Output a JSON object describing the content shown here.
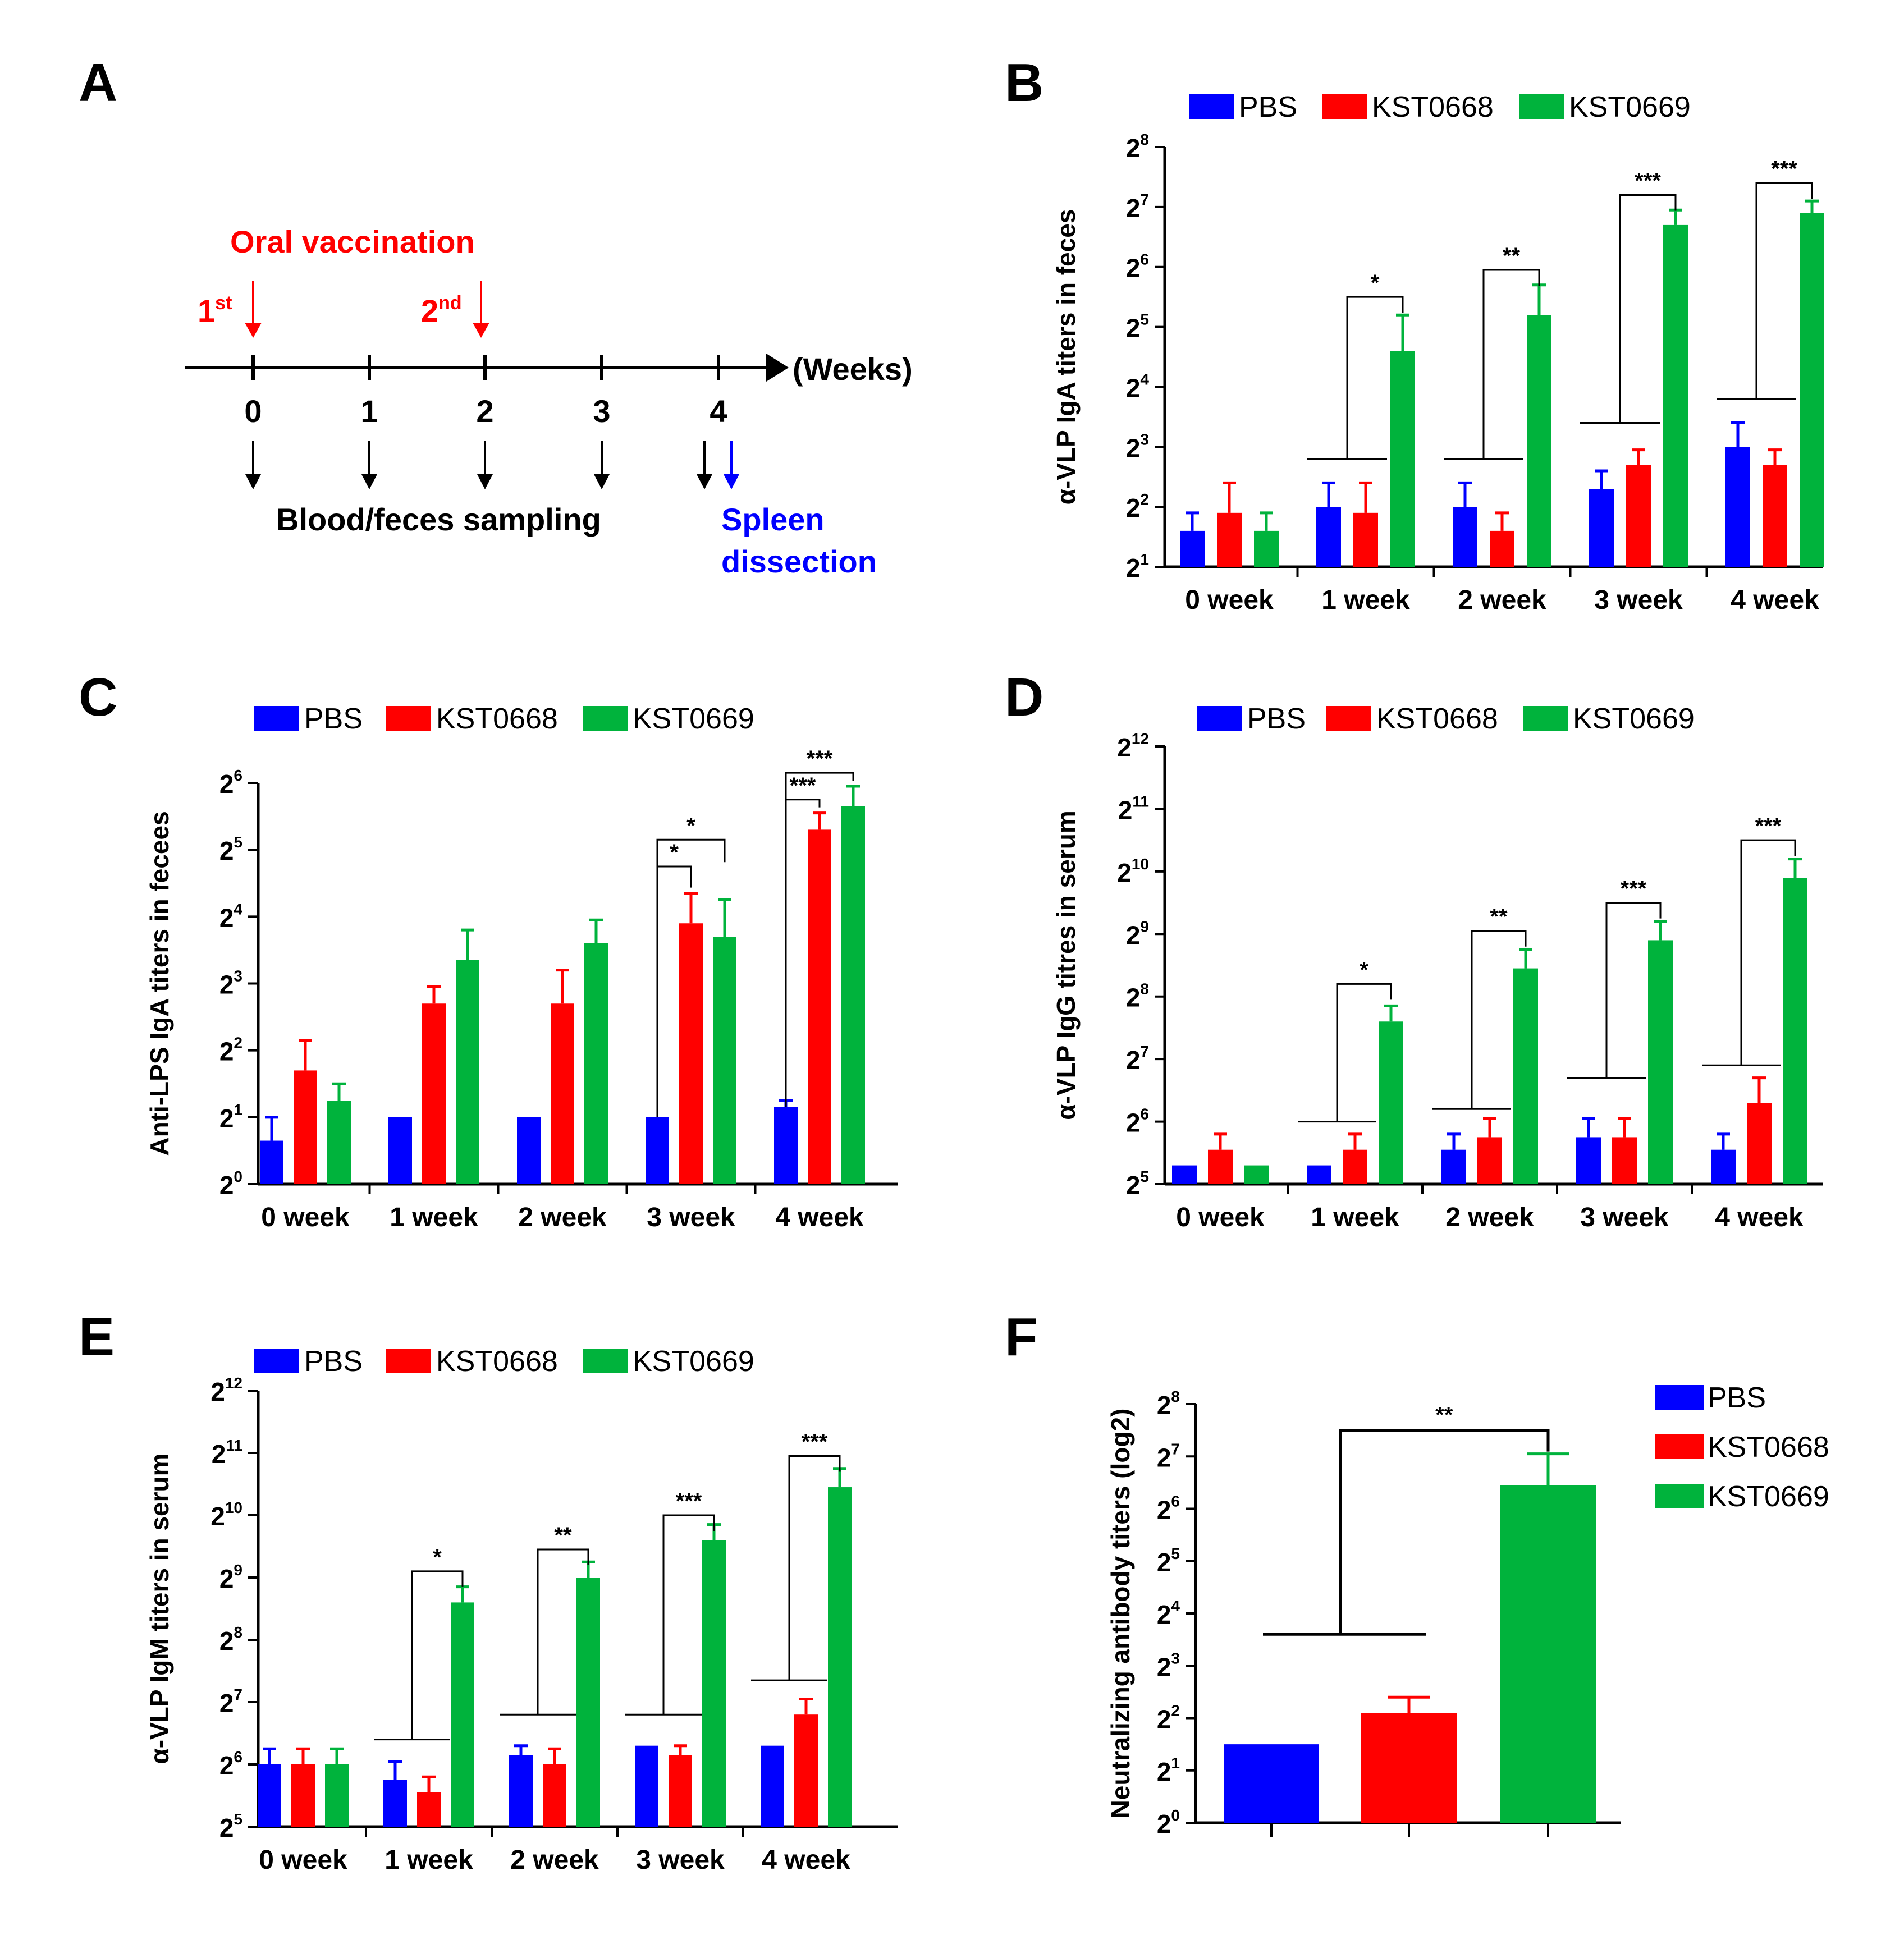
{
  "colors": {
    "PBS": "#0000ff",
    "KST0668": "#ff0000",
    "KST0669": "#00b33c",
    "red": "#ff0000",
    "blue": "#0000ff",
    "black": "#000000"
  },
  "timeline": {
    "panel_label": "A",
    "vaccination_label": "Oral vaccination",
    "first_main": "1",
    "first_sup": "st",
    "second_main": "2",
    "second_sup": "nd",
    "axis_label": "(Weeks)",
    "ticks": [
      "0",
      "1",
      "2",
      "3",
      "4"
    ],
    "sampling_label": "Blood/feces sampling",
    "spleen_label_1": "Spleen",
    "spleen_label_2": "dissection"
  },
  "chart_data": [
    {
      "id": "B",
      "panel_label": "B",
      "type": "bar",
      "ylabel": "α-VLP IgA  titers in feces",
      "categories": [
        "0 week",
        "1 week",
        "2 week",
        "3 week",
        "4 week"
      ],
      "legend": [
        "PBS",
        "KST0668",
        "KST0669"
      ],
      "y_base": 2,
      "ylim_exp": [
        1,
        8
      ],
      "y_ticks": [
        {
          "base": "2",
          "exp": "1"
        },
        {
          "base": "2",
          "exp": "2"
        },
        {
          "base": "2",
          "exp": "3"
        },
        {
          "base": "2",
          "exp": "4"
        },
        {
          "base": "2",
          "exp": "5"
        },
        {
          "base": "2",
          "exp": "6"
        },
        {
          "base": "2",
          "exp": "7"
        },
        {
          "base": "2",
          "exp": "8"
        }
      ],
      "series": [
        {
          "name": "PBS",
          "values_log2": [
            1.6,
            2.0,
            2.0,
            2.3,
            3.0
          ],
          "errors_log2": [
            0.3,
            0.4,
            0.4,
            0.3,
            0.4
          ]
        },
        {
          "name": "KST0668",
          "values_log2": [
            1.9,
            1.9,
            1.6,
            2.7,
            2.7
          ],
          "errors_log2": [
            0.5,
            0.5,
            0.3,
            0.25,
            0.25
          ]
        },
        {
          "name": "KST0669",
          "values_log2": [
            1.6,
            4.6,
            5.2,
            6.7,
            6.9
          ],
          "errors_log2": [
            0.3,
            0.6,
            0.5,
            0.25,
            0.2
          ]
        }
      ],
      "significance": [
        {
          "category": 1,
          "label": "*",
          "bracket_exp": 5.5,
          "left_exp": 2.8
        },
        {
          "category": 2,
          "label": "**",
          "bracket_exp": 5.95,
          "left_exp": 2.8
        },
        {
          "category": 3,
          "label": "***",
          "bracket_exp": 7.2,
          "left_exp": 3.4
        },
        {
          "category": 4,
          "label": "***",
          "bracket_exp": 7.4,
          "left_exp": 3.8
        }
      ]
    },
    {
      "id": "C",
      "panel_label": "C",
      "type": "bar",
      "ylabel": "Anti-LPS IgA titers in fecees",
      "categories": [
        "0 week",
        "1 week",
        "2 week",
        "3 week",
        "4 week"
      ],
      "legend": [
        "PBS",
        "KST0668",
        "KST0669"
      ],
      "y_base": 2,
      "ylim_exp": [
        0,
        6
      ],
      "y_ticks": [
        {
          "base": "2",
          "exp": "0"
        },
        {
          "base": "2",
          "exp": "1"
        },
        {
          "base": "2",
          "exp": "2"
        },
        {
          "base": "2",
          "exp": "3"
        },
        {
          "base": "2",
          "exp": "4"
        },
        {
          "base": "2",
          "exp": "5"
        },
        {
          "base": "2",
          "exp": "6"
        }
      ],
      "series": [
        {
          "name": "PBS",
          "values_log2": [
            0.65,
            1.0,
            1.0,
            1.0,
            1.15
          ],
          "errors_log2": [
            0.35,
            0,
            0,
            0,
            0.1
          ]
        },
        {
          "name": "KST0668",
          "values_log2": [
            1.7,
            2.7,
            2.7,
            3.9,
            5.3
          ],
          "errors_log2": [
            0.45,
            0.25,
            0.5,
            0.45,
            0.25
          ]
        },
        {
          "name": "KST0669",
          "values_log2": [
            1.25,
            3.35,
            3.6,
            3.7,
            5.65
          ],
          "errors_log2": [
            0.25,
            0.45,
            0.35,
            0.55,
            0.3
          ]
        }
      ],
      "significance": [
        {
          "category": 3,
          "label": "*",
          "from": 0,
          "to": 1,
          "bracket_exp": 4.75
        },
        {
          "category": 3,
          "label": "*",
          "from": 0,
          "to": 2,
          "bracket_exp": 5.15
        },
        {
          "category": 4,
          "label": "***",
          "from": 0,
          "to": 1,
          "bracket_exp": 5.75
        },
        {
          "category": 4,
          "label": "***",
          "from": 0,
          "to": 2,
          "bracket_exp": 6.15
        }
      ]
    },
    {
      "id": "D",
      "panel_label": "D",
      "type": "bar",
      "ylabel": "α-VLP IgG  titres in serum",
      "categories": [
        "0 week",
        "1 week",
        "2 week",
        "3 week",
        "4 week"
      ],
      "legend": [
        "PBS",
        "KST0668",
        "KST0669"
      ],
      "y_base": 2,
      "ylim_exp": [
        5,
        12
      ],
      "y_ticks": [
        {
          "base": "2",
          "exp": "5"
        },
        {
          "base": "2",
          "exp": "6"
        },
        {
          "base": "2",
          "exp": "7"
        },
        {
          "base": "2",
          "exp": "8"
        },
        {
          "base": "2",
          "exp": "9"
        },
        {
          "base": "2",
          "exp": "10"
        },
        {
          "base": "2",
          "exp": "11"
        },
        {
          "base": "2",
          "exp": "12"
        }
      ],
      "series": [
        {
          "name": "PBS",
          "values_log2": [
            5.3,
            5.3,
            5.55,
            5.75,
            5.55
          ],
          "errors_log2": [
            0,
            0,
            0.25,
            0.3,
            0.25
          ]
        },
        {
          "name": "KST0668",
          "values_log2": [
            5.55,
            5.55,
            5.75,
            5.75,
            6.3
          ],
          "errors_log2": [
            0.25,
            0.25,
            0.3,
            0.3,
            0.4
          ]
        },
        {
          "name": "KST0669",
          "values_log2": [
            5.3,
            7.6,
            8.45,
            8.9,
            9.9
          ],
          "errors_log2": [
            0,
            0.25,
            0.3,
            0.3,
            0.3
          ]
        }
      ],
      "significance": [
        {
          "category": 1,
          "label": "*",
          "bracket_exp": 8.2,
          "left_exp": 6.0
        },
        {
          "category": 2,
          "label": "**",
          "bracket_exp": 9.05,
          "left_exp": 6.2
        },
        {
          "category": 3,
          "label": "***",
          "bracket_exp": 9.5,
          "left_exp": 6.7
        },
        {
          "category": 4,
          "label": "***",
          "bracket_exp": 10.5,
          "left_exp": 6.9
        }
      ]
    },
    {
      "id": "E",
      "panel_label": "E",
      "type": "bar",
      "ylabel": "α-VLP IgM  titers in serum",
      "categories": [
        "0 week",
        "1 week",
        "2 week",
        "3 week",
        "4 week"
      ],
      "legend": [
        "PBS",
        "KST0668",
        "KST0669"
      ],
      "y_base": 2,
      "ylim_exp": [
        5,
        12
      ],
      "y_ticks": [
        {
          "base": "2",
          "exp": "5"
        },
        {
          "base": "2",
          "exp": "6"
        },
        {
          "base": "2",
          "exp": "7"
        },
        {
          "base": "2",
          "exp": "8"
        },
        {
          "base": "2",
          "exp": "9"
        },
        {
          "base": "2",
          "exp": "10"
        },
        {
          "base": "2",
          "exp": "11"
        },
        {
          "base": "2",
          "exp": "12"
        }
      ],
      "series": [
        {
          "name": "PBS",
          "values_log2": [
            6.0,
            5.75,
            6.15,
            6.3,
            6.3
          ],
          "errors_log2": [
            0.25,
            0.3,
            0.15,
            0,
            0
          ]
        },
        {
          "name": "KST0668",
          "values_log2": [
            6.0,
            5.55,
            6.0,
            6.15,
            6.8
          ],
          "errors_log2": [
            0.25,
            0.25,
            0.25,
            0.15,
            0.25
          ]
        },
        {
          "name": "KST0669",
          "values_log2": [
            6.0,
            8.6,
            9.0,
            9.6,
            10.45
          ],
          "errors_log2": [
            0.25,
            0.25,
            0.25,
            0.25,
            0.3
          ]
        }
      ],
      "significance": [
        {
          "category": 1,
          "label": "*",
          "bracket_exp": 9.1,
          "left_exp": 6.4
        },
        {
          "category": 2,
          "label": "**",
          "bracket_exp": 9.45,
          "left_exp": 6.8
        },
        {
          "category": 3,
          "label": "***",
          "bracket_exp": 10.0,
          "left_exp": 6.8
        },
        {
          "category": 4,
          "label": "***",
          "bracket_exp": 10.95,
          "left_exp": 7.35
        }
      ]
    },
    {
      "id": "F",
      "panel_label": "F",
      "type": "bar",
      "ylabel": "Neutralizing antibody titers (log2)",
      "categories": [
        "PBS",
        "KST0668",
        "KST0669"
      ],
      "legend": [
        "PBS",
        "KST0668",
        "KST0669"
      ],
      "y_base": 2,
      "ylim_exp": [
        0,
        8
      ],
      "y_ticks": [
        {
          "base": "2",
          "exp": "0"
        },
        {
          "base": "2",
          "exp": "1"
        },
        {
          "base": "2",
          "exp": "2"
        },
        {
          "base": "2",
          "exp": "3"
        },
        {
          "base": "2",
          "exp": "4"
        },
        {
          "base": "2",
          "exp": "5"
        },
        {
          "base": "2",
          "exp": "6"
        },
        {
          "base": "2",
          "exp": "7"
        },
        {
          "base": "2",
          "exp": "8"
        }
      ],
      "values_log2": [
        1.5,
        2.1,
        6.45
      ],
      "errors_log2": [
        0,
        0.3,
        0.6
      ],
      "significance": [
        {
          "label": "**",
          "bracket_exp": 7.5,
          "left_exp": 3.6
        }
      ]
    }
  ]
}
